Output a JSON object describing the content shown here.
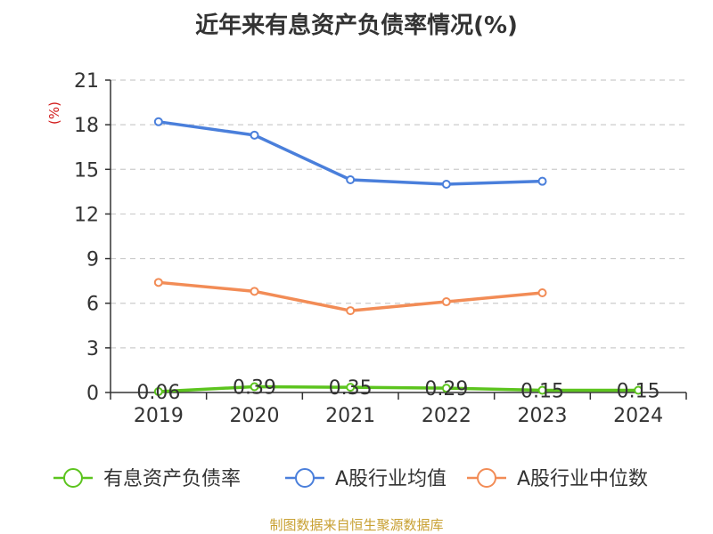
{
  "chart_data": {
    "type": "line",
    "title": "近年来有息资产负债率情况(%)",
    "ylabel": "(%)",
    "categories": [
      "2019",
      "2020",
      "2021",
      "2022",
      "2023",
      "2024"
    ],
    "ylim": [
      0,
      21
    ],
    "yticks": [
      0,
      3,
      6,
      9,
      12,
      15,
      18,
      21
    ],
    "grid": true,
    "legend_position": "bottom",
    "series": [
      {
        "name": "有息资产负债率",
        "color": "#5cc41e",
        "values": [
          0.06,
          0.39,
          0.35,
          0.29,
          0.15,
          0.15
        ],
        "labels": [
          "0.06",
          "0.39",
          "0.35",
          "0.29",
          "0.15",
          "0.15"
        ]
      },
      {
        "name": "A股行业均值",
        "color": "#4a7fdb",
        "values": [
          18.2,
          17.3,
          14.3,
          14.0,
          14.2,
          null
        ]
      },
      {
        "name": "A股行业中位数",
        "color": "#f28c56",
        "values": [
          7.4,
          6.8,
          5.5,
          6.1,
          6.7,
          null
        ]
      }
    ]
  },
  "source_text": "制图数据来自恒生聚源数据库"
}
